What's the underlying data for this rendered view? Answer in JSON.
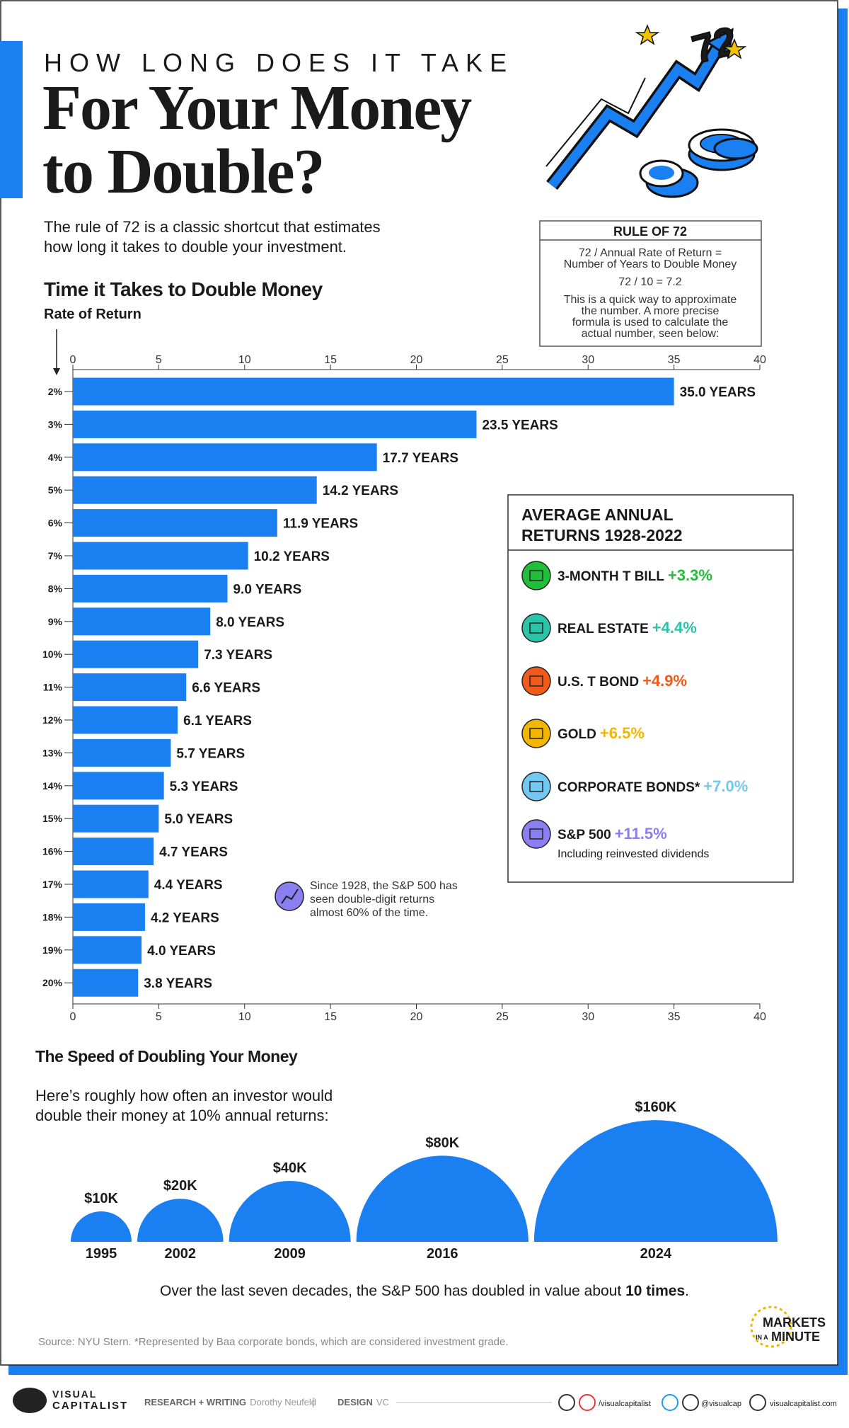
{
  "header": {
    "kicker": "HOW LONG DOES IT TAKE",
    "title_lines": [
      "For Your Money",
      "to Double?"
    ],
    "intro_lines": [
      "The rule of 72 is a classic shortcut that estimates",
      "how long it takes to double your investment."
    ],
    "illustration_label": "72"
  },
  "rule_box": {
    "title": "RULE OF 72",
    "lines": [
      "72 / Annual Rate of Return =",
      "Number of Years to Double Money",
      "72 / 10 = 7.2",
      "This is a quick way to approximate",
      "the number. A more precise",
      "formula is used to calculate the",
      "actual number, seen below:"
    ]
  },
  "chart_data": [
    {
      "type": "bar",
      "horizontal": true,
      "title": "Time it Takes to Double Money",
      "axis_label": "Rate of Return",
      "categories": [
        "2%",
        "3%",
        "4%",
        "5%",
        "6%",
        "7%",
        "8%",
        "9%",
        "10%",
        "11%",
        "12%",
        "13%",
        "14%",
        "15%",
        "16%",
        "17%",
        "18%",
        "19%",
        "20%"
      ],
      "values": [
        35.0,
        23.5,
        17.7,
        14.2,
        11.9,
        10.2,
        9.0,
        8.0,
        7.3,
        6.6,
        6.1,
        5.7,
        5.3,
        5.0,
        4.7,
        4.4,
        4.2,
        4.0,
        3.8
      ],
      "value_labels": [
        "35.0 YEARS",
        "23.5 YEARS",
        "17.7 YEARS",
        "14.2 YEARS",
        "11.9 YEARS",
        "10.2 YEARS",
        "9.0 YEARS",
        "8.0 YEARS",
        "7.3 YEARS",
        "6.6 YEARS",
        "6.1 YEARS",
        "5.7 YEARS",
        "5.3 YEARS",
        "5.0 YEARS",
        "4.7 YEARS",
        "4.4 YEARS",
        "4.2 YEARS",
        "4.0 YEARS",
        "3.8 YEARS"
      ],
      "color": "#1a7ff0",
      "xlim": [
        0,
        40
      ],
      "xticks": [
        0,
        5,
        10,
        15,
        20,
        25,
        30,
        35,
        40
      ],
      "annotation_lines": [
        "Since 1928, the S&P 500 has",
        "seen double-digit returns",
        "almost 60% of the time."
      ]
    },
    {
      "type": "semicircle",
      "title": "The Speed of Doubling Your Money",
      "subtitle_lines": [
        "Here’s roughly how often an investor would",
        "double their money at 10% annual returns:"
      ],
      "categories": [
        "1995",
        "2002",
        "2009",
        "2016",
        "2024"
      ],
      "values": [
        10000,
        20000,
        40000,
        80000,
        160000
      ],
      "value_labels": [
        "$10K",
        "$20K",
        "$40K",
        "$80K",
        "$160K"
      ],
      "color": "#1a7ff0",
      "footnote_parts": [
        "Over the last seven decades, the S&P 500 has doubled in value about ",
        "10 times",
        "."
      ]
    }
  ],
  "returns_panel": {
    "title_lines": [
      "AVERAGE ANNUAL",
      "RETURNS 1928-2022"
    ],
    "items": [
      {
        "name": "3-MONTH T BILL",
        "value": "+3.3%",
        "color": "#1fbf3a"
      },
      {
        "name": "REAL ESTATE",
        "value": "+4.4%",
        "color": "#2cc4a8"
      },
      {
        "name": "U.S. T BOND",
        "value": "+4.9%",
        "color": "#f05a1a"
      },
      {
        "name": "GOLD",
        "value": "+6.5%",
        "color": "#f2b600"
      },
      {
        "name": "CORPORATE BONDS*",
        "value": "+7.0%",
        "color": "#72c8f0"
      },
      {
        "name": "S&P 500",
        "value": "+11.5%",
        "color": "#8a7ef0",
        "note": "Including reinvested dividends"
      }
    ]
  },
  "source": "Source: NYU Stern. *Represented by Baa corporate bonds, which are considered investment grade.",
  "badge_lines": [
    "MARKETS",
    "IN A",
    "MINUTE"
  ],
  "footer": {
    "logo_lines": [
      "VISUAL",
      "CAPITALIST"
    ],
    "credits": [
      {
        "role": "RESEARCH + WRITING",
        "name": "Dorothy Neufeld"
      },
      {
        "role": "DESIGN",
        "name": "VC"
      }
    ],
    "socials": [
      "/visualcapitalist",
      "@visualcap",
      "visualcapitalist.com"
    ]
  }
}
